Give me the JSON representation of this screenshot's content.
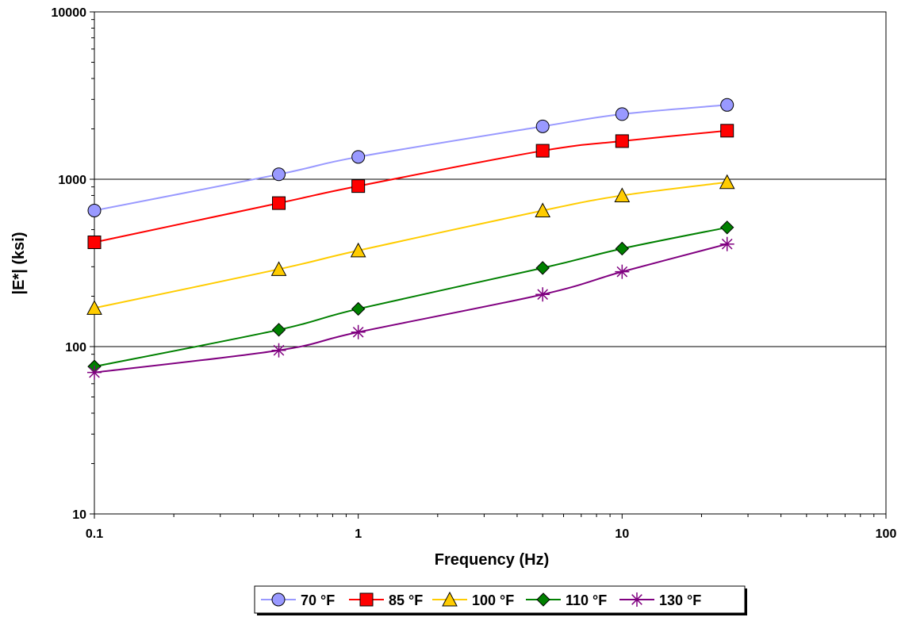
{
  "chart_data": {
    "type": "line",
    "title": "",
    "xlabel": "Frequency (Hz)",
    "ylabel": "|E*| (ksi)",
    "x_scale": "log",
    "y_scale": "log",
    "xlim": [
      0.1,
      100
    ],
    "ylim": [
      10,
      10000
    ],
    "x_ticks": [
      {
        "value": 0.1,
        "label": "0.1"
      },
      {
        "value": 1,
        "label": "1"
      },
      {
        "value": 10,
        "label": "10"
      },
      {
        "value": 100,
        "label": "100"
      }
    ],
    "y_ticks": [
      {
        "value": 10,
        "label": "10"
      },
      {
        "value": 100,
        "label": "100"
      },
      {
        "value": 1000,
        "label": "1000"
      },
      {
        "value": 10000,
        "label": "10000"
      }
    ],
    "gridlines": "horizontal major (100, 1000)",
    "legend_position": "bottom",
    "x": [
      0.1,
      0.5,
      1,
      5,
      10,
      25
    ],
    "series": [
      {
        "name": "70 °F",
        "marker": "circle",
        "color": "#9999ff",
        "line_color": "#9999ff",
        "values": [
          650,
          1070,
          1360,
          2070,
          2450,
          2780
        ]
      },
      {
        "name": "85 °F",
        "marker": "square",
        "color": "#ff0000",
        "line_color": "#ff0000",
        "values": [
          420,
          720,
          910,
          1480,
          1690,
          1950
        ]
      },
      {
        "name": "100 °F",
        "marker": "triangle",
        "color": "#ffcc00",
        "line_color": "#ffcc00",
        "values": [
          170,
          290,
          375,
          650,
          800,
          960
        ]
      },
      {
        "name": "110 °F",
        "marker": "diamond",
        "color": "#008000",
        "line_color": "#008000",
        "values": [
          76,
          126,
          168,
          295,
          385,
          515
        ]
      },
      {
        "name": "130 °F",
        "marker": "star",
        "color": "#800080",
        "line_color": "#800080",
        "values": [
          70,
          95,
          122,
          205,
          280,
          410
        ]
      }
    ]
  }
}
